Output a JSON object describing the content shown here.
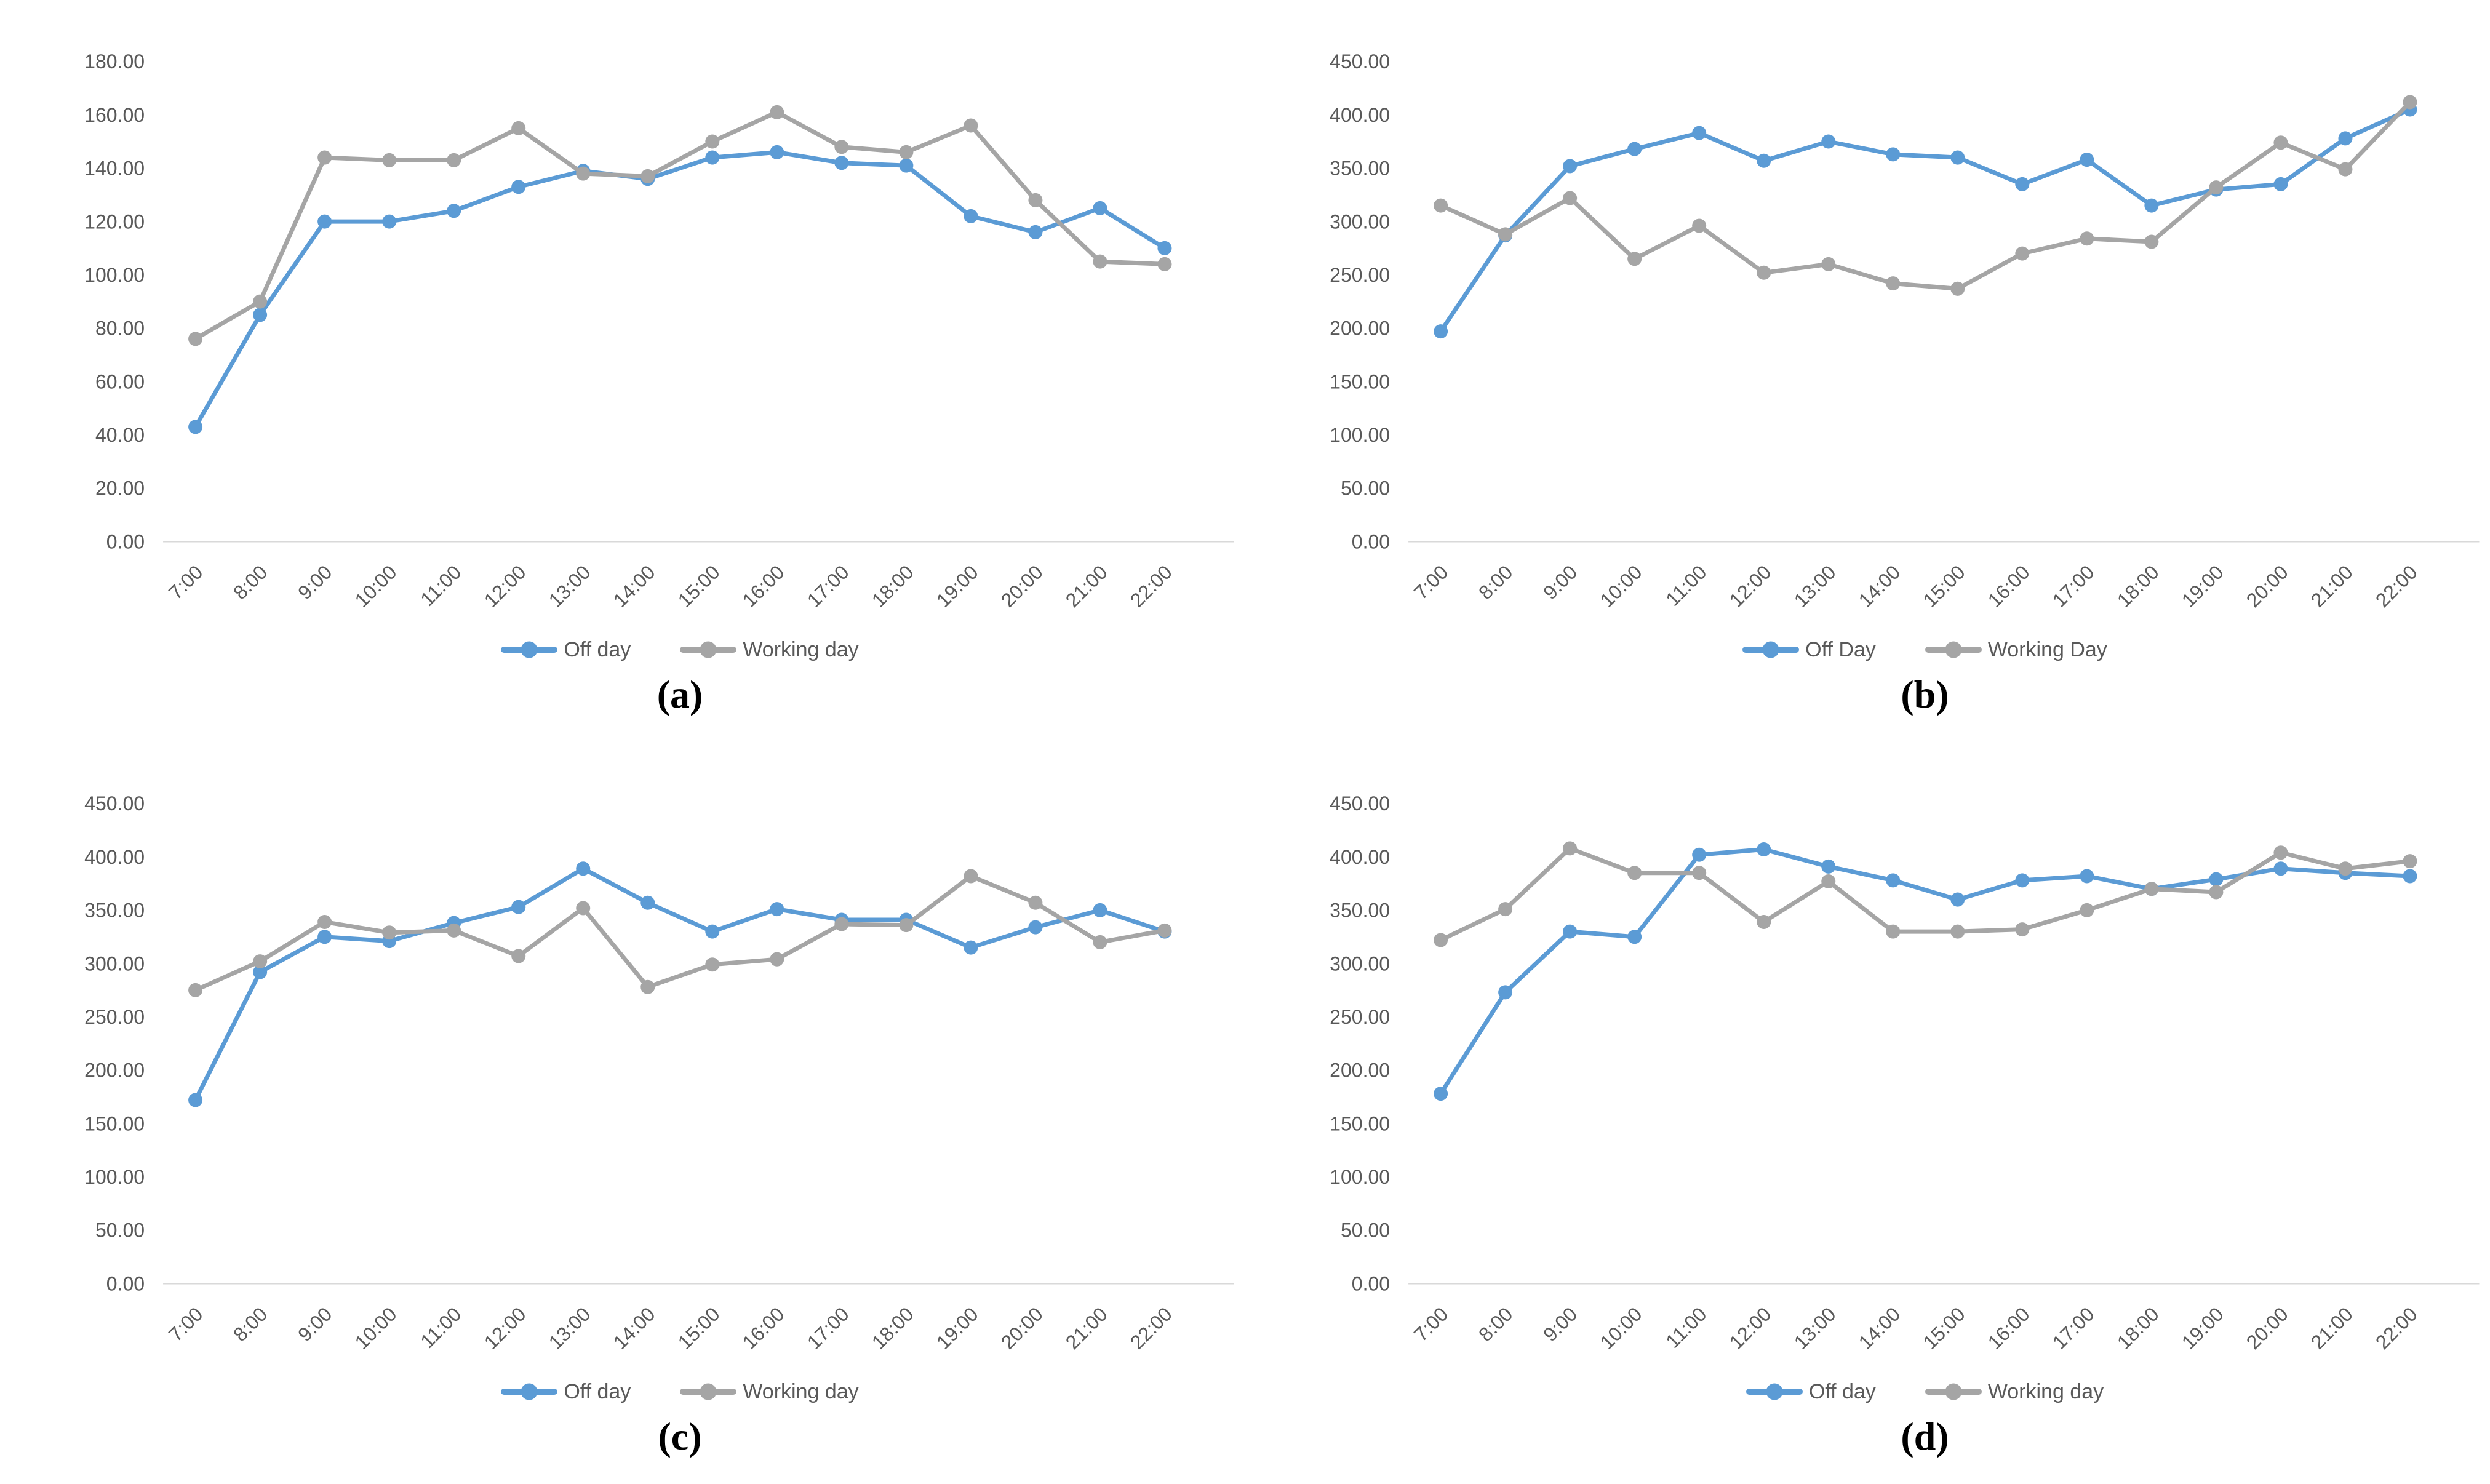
{
  "style": {
    "series_blue": "#5B9BD5",
    "series_gray": "#A5A5A5",
    "tick_label_color": "#595959",
    "axis_line_color": "#D9D9D9",
    "background": "#FFFFFF"
  },
  "chart_data": [
    {
      "id": "a",
      "type": "line",
      "caption": "(a)",
      "title": "",
      "xlabel": "",
      "ylabel": "",
      "grid": false,
      "legend_position": "bottom",
      "ylim": [
        0,
        180
      ],
      "ytick_step": 20,
      "categories": [
        "7:00",
        "8:00",
        "9:00",
        "10:00",
        "11:00",
        "12:00",
        "13:00",
        "14:00",
        "15:00",
        "16:00",
        "17:00",
        "18:00",
        "19:00",
        "20:00",
        "21:00",
        "22:00"
      ],
      "series": [
        {
          "name": "Off day",
          "color": "#5B9BD5",
          "values": [
            43,
            85,
            120,
            120,
            124,
            133,
            139,
            136,
            144,
            146,
            142,
            141,
            122,
            116,
            125,
            110
          ]
        },
        {
          "name": "Working day",
          "color": "#A5A5A5",
          "values": [
            76,
            90,
            144,
            143,
            143,
            155,
            138,
            137,
            150,
            161,
            148,
            146,
            156,
            128,
            105,
            104
          ]
        }
      ]
    },
    {
      "id": "b",
      "type": "line",
      "caption": "(b)",
      "title": "",
      "xlabel": "",
      "ylabel": "",
      "grid": false,
      "legend_position": "bottom",
      "ylim": [
        0,
        450
      ],
      "ytick_step": 50,
      "categories": [
        "7:00",
        "8:00",
        "9:00",
        "10:00",
        "11:00",
        "12:00",
        "13:00",
        "14:00",
        "15:00",
        "16:00",
        "17:00",
        "18:00",
        "19:00",
        "20:00",
        "21:00",
        "22:00"
      ],
      "series": [
        {
          "name": "Off Day",
          "color": "#5B9BD5",
          "values": [
            197,
            287,
            352,
            368,
            383,
            357,
            375,
            363,
            360,
            335,
            358,
            315,
            330,
            335,
            378,
            405
          ]
        },
        {
          "name": "Working Day",
          "color": "#A5A5A5",
          "values": [
            315,
            288,
            322,
            265,
            296,
            252,
            260,
            242,
            237,
            270,
            284,
            281,
            332,
            374,
            349,
            412
          ]
        }
      ]
    },
    {
      "id": "c",
      "type": "line",
      "caption": "(c)",
      "title": "",
      "xlabel": "",
      "ylabel": "",
      "grid": false,
      "legend_position": "bottom",
      "ylim": [
        0,
        450
      ],
      "ytick_step": 50,
      "categories": [
        "7:00",
        "8:00",
        "9:00",
        "10:00",
        "11:00",
        "12:00",
        "13:00",
        "14:00",
        "15:00",
        "16:00",
        "17:00",
        "18:00",
        "19:00",
        "20:00",
        "21:00",
        "22:00"
      ],
      "series": [
        {
          "name": "Off day",
          "color": "#5B9BD5",
          "values": [
            172,
            292,
            325,
            321,
            338,
            353,
            389,
            357,
            330,
            351,
            341,
            341,
            315,
            334,
            350,
            330
          ]
        },
        {
          "name": "Working day",
          "color": "#A5A5A5",
          "values": [
            275,
            302,
            339,
            329,
            331,
            307,
            352,
            278,
            299,
            304,
            337,
            336,
            382,
            357,
            320,
            331
          ]
        }
      ]
    },
    {
      "id": "d",
      "type": "line",
      "caption": "(d)",
      "title": "",
      "xlabel": "",
      "ylabel": "",
      "grid": false,
      "legend_position": "bottom",
      "ylim": [
        0,
        450
      ],
      "ytick_step": 50,
      "categories": [
        "7:00",
        "8:00",
        "9:00",
        "10:00",
        "11:00",
        "12:00",
        "13:00",
        "14:00",
        "15:00",
        "16:00",
        "17:00",
        "18:00",
        "19:00",
        "20:00",
        "21:00",
        "22:00"
      ],
      "series": [
        {
          "name": "Off day",
          "color": "#5B9BD5",
          "values": [
            178,
            273,
            330,
            325,
            402,
            407,
            391,
            378,
            360,
            378,
            382,
            370,
            379,
            389,
            385,
            382
          ]
        },
        {
          "name": "Working day",
          "color": "#A5A5A5",
          "values": [
            322,
            351,
            408,
            385,
            385,
            339,
            377,
            330,
            330,
            332,
            350,
            370,
            367,
            404,
            389,
            396
          ]
        }
      ]
    }
  ]
}
